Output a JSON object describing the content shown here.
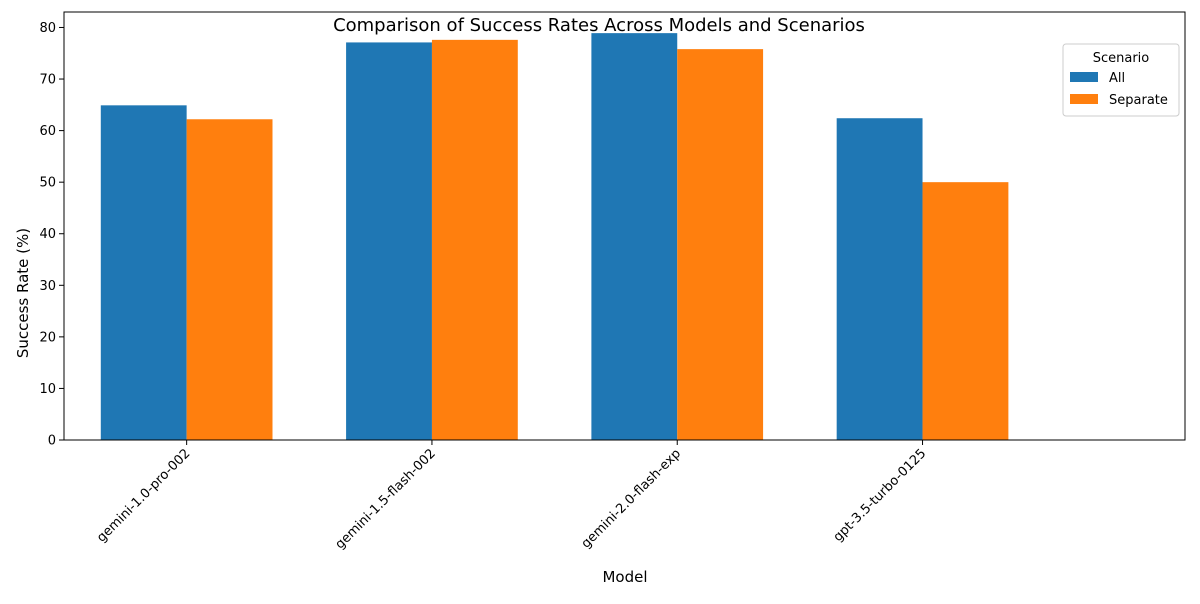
{
  "chart_data": {
    "type": "bar",
    "title": "Comparison of Success Rates Across Models and Scenarios",
    "xlabel": "Model",
    "ylabel": "Success Rate (%)",
    "categories": [
      "gemini-1.0-pro-002",
      "gemini-1.5-flash-002",
      "gemini-2.0-flash-exp",
      "gpt-3.5-turbo-0125"
    ],
    "series": [
      {
        "name": "All",
        "values": [
          64.9,
          77.1,
          78.9,
          62.4
        ],
        "color": "#1f77b4"
      },
      {
        "name": "Separate",
        "values": [
          62.2,
          77.6,
          75.8,
          50.0
        ],
        "color": "#ff7f0e"
      }
    ],
    "ylim": [
      0,
      83
    ],
    "yticks": [
      0,
      10,
      20,
      30,
      40,
      50,
      60,
      70,
      80
    ],
    "legend": {
      "title": "Scenario",
      "placement": "top-right"
    },
    "grid": false
  }
}
